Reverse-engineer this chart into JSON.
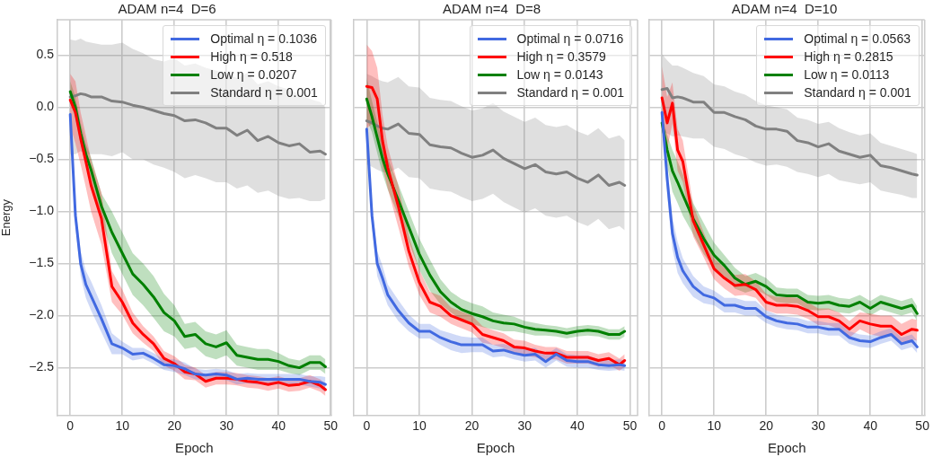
{
  "chart_data": [
    {
      "type": "line",
      "title": "ADAM n=4  D=6",
      "xlabel": "Epoch",
      "ylabel": "Energy",
      "x": [
        0,
        1,
        2,
        3,
        4,
        6,
        8,
        10,
        12,
        14,
        16,
        18,
        20,
        22,
        24,
        26,
        28,
        30,
        32,
        34,
        36,
        38,
        40,
        42,
        44,
        46,
        48,
        49
      ],
      "xlim": [
        -2.45,
        50.1
      ],
      "ylim": [
        -2.96,
        0.84
      ],
      "xticks": [
        0,
        10,
        20,
        30,
        40,
        50
      ],
      "yticks": [
        {
          "value": -2.5,
          "label": "−2.5"
        },
        {
          "value": -2.0,
          "label": "−2.0"
        },
        {
          "value": -1.5,
          "label": "−1.5"
        },
        {
          "value": -1.0,
          "label": "−1.0"
        },
        {
          "value": -0.5,
          "label": "−0.5"
        },
        {
          "value": 0.0,
          "label": "0.0"
        },
        {
          "value": 0.5,
          "label": "0.5"
        }
      ],
      "grid": true,
      "legend": "top right",
      "series": [
        {
          "name": "Optimal η = 0.1036",
          "color": "#4169e1",
          "values": [
            -0.07,
            -1.04,
            -1.5,
            -1.7,
            -1.81,
            -2.03,
            -2.27,
            -2.31,
            -2.37,
            -2.36,
            -2.41,
            -2.47,
            -2.48,
            -2.51,
            -2.56,
            -2.57,
            -2.56,
            -2.57,
            -2.61,
            -2.6,
            -2.61,
            -2.61,
            -2.61,
            -2.61,
            -2.61,
            -2.63,
            -2.64,
            -2.66
          ],
          "lower": [
            -0.12,
            -1.14,
            -1.62,
            -1.83,
            -1.95,
            -2.16,
            -2.37,
            -2.37,
            -2.43,
            -2.41,
            -2.46,
            -2.52,
            -2.54,
            -2.57,
            -2.61,
            -2.62,
            -2.61,
            -2.62,
            -2.66,
            -2.65,
            -2.66,
            -2.66,
            -2.66,
            -2.66,
            -2.66,
            -2.68,
            -2.7,
            -2.73
          ],
          "upper": [
            -0.02,
            -0.94,
            -1.38,
            -1.57,
            -1.67,
            -1.9,
            -2.17,
            -2.25,
            -2.31,
            -2.31,
            -2.36,
            -2.42,
            -2.42,
            -2.45,
            -2.51,
            -2.52,
            -2.51,
            -2.52,
            -2.56,
            -2.55,
            -2.56,
            -2.56,
            -2.56,
            -2.56,
            -2.56,
            -2.58,
            -2.58,
            -2.59
          ]
        },
        {
          "name": "High η = 0.518",
          "color": "#ff0000",
          "values": [
            0.07,
            -0.05,
            -0.3,
            -0.52,
            -0.75,
            -1.07,
            -1.72,
            -1.87,
            -2.07,
            -2.18,
            -2.27,
            -2.41,
            -2.46,
            -2.54,
            -2.56,
            -2.63,
            -2.6,
            -2.6,
            -2.61,
            -2.63,
            -2.64,
            -2.66,
            -2.64,
            -2.67,
            -2.66,
            -2.63,
            -2.67,
            -2.71
          ],
          "lower": [
            -0.18,
            -0.35,
            -0.55,
            -0.77,
            -1.0,
            -1.32,
            -1.87,
            -1.99,
            -2.17,
            -2.26,
            -2.34,
            -2.48,
            -2.53,
            -2.61,
            -2.62,
            -2.69,
            -2.66,
            -2.66,
            -2.67,
            -2.69,
            -2.7,
            -2.72,
            -2.7,
            -2.73,
            -2.72,
            -2.69,
            -2.73,
            -2.77
          ],
          "upper": [
            0.32,
            0.25,
            -0.05,
            -0.27,
            -0.5,
            -0.82,
            -1.57,
            -1.75,
            -1.97,
            -2.1,
            -2.2,
            -2.34,
            -2.39,
            -2.47,
            -2.5,
            -2.57,
            -2.54,
            -2.54,
            -2.55,
            -2.57,
            -2.58,
            -2.6,
            -2.58,
            -2.61,
            -2.6,
            -2.57,
            -2.61,
            -2.65
          ]
        },
        {
          "name": "Low η = 0.0207",
          "color": "#008000",
          "values": [
            0.15,
            0.0,
            -0.25,
            -0.45,
            -0.6,
            -0.95,
            -1.2,
            -1.4,
            -1.6,
            -1.7,
            -1.82,
            -1.97,
            -2.05,
            -2.2,
            -2.18,
            -2.27,
            -2.3,
            -2.26,
            -2.38,
            -2.4,
            -2.42,
            -2.42,
            -2.44,
            -2.48,
            -2.5,
            -2.45,
            -2.45,
            -2.49
          ],
          "lower": [
            0.05,
            -0.1,
            -0.35,
            -0.55,
            -0.72,
            -1.07,
            -1.4,
            -1.6,
            -1.8,
            -1.9,
            -2.02,
            -2.15,
            -2.2,
            -2.32,
            -2.3,
            -2.39,
            -2.42,
            -2.38,
            -2.48,
            -2.5,
            -2.52,
            -2.52,
            -2.52,
            -2.55,
            -2.57,
            -2.52,
            -2.52,
            -2.56
          ],
          "upper": [
            0.25,
            0.1,
            -0.15,
            -0.35,
            -0.48,
            -0.83,
            -1.0,
            -1.2,
            -1.4,
            -1.5,
            -1.62,
            -1.79,
            -1.9,
            -2.08,
            -2.06,
            -2.15,
            -2.18,
            -2.14,
            -2.28,
            -2.3,
            -2.32,
            -2.32,
            -2.36,
            -2.41,
            -2.43,
            -2.38,
            -2.38,
            -2.42
          ]
        },
        {
          "name": "Standard η = 0.001",
          "color": "#808080",
          "values": [
            0.1,
            0.11,
            0.13,
            0.12,
            0.1,
            0.1,
            0.06,
            0.05,
            0.02,
            0.0,
            -0.03,
            -0.06,
            -0.08,
            -0.13,
            -0.12,
            -0.15,
            -0.2,
            -0.2,
            -0.27,
            -0.22,
            -0.32,
            -0.28,
            -0.34,
            -0.37,
            -0.35,
            -0.43,
            -0.42,
            -0.45
          ],
          "lower": [
            -0.45,
            -0.45,
            -0.42,
            -0.45,
            -0.45,
            -0.45,
            -0.47,
            -0.43,
            -0.5,
            -0.5,
            -0.55,
            -0.58,
            -0.62,
            -0.68,
            -0.65,
            -0.68,
            -0.72,
            -0.72,
            -0.78,
            -0.75,
            -0.82,
            -0.8,
            -0.85,
            -0.88,
            -0.87,
            -0.9,
            -0.9,
            -0.88
          ],
          "upper": [
            0.65,
            0.64,
            0.66,
            0.63,
            0.62,
            0.6,
            0.6,
            0.62,
            0.56,
            0.52,
            0.46,
            0.44,
            0.47,
            0.4,
            0.42,
            0.38,
            0.35,
            0.32,
            0.28,
            0.33,
            0.22,
            0.25,
            0.2,
            0.17,
            0.12,
            0.08,
            0.05,
            0.0
          ]
        }
      ]
    },
    {
      "type": "line",
      "title": "ADAM n=4  D=8",
      "xlabel": "Epoch",
      "x": [
        0,
        1,
        2,
        3,
        4,
        6,
        8,
        10,
        12,
        14,
        16,
        18,
        20,
        22,
        24,
        26,
        28,
        30,
        32,
        34,
        36,
        38,
        40,
        42,
        44,
        46,
        48,
        49
      ],
      "xlim": [
        -2.45,
        51.45
      ],
      "ylim": [
        -2.96,
        0.84
      ],
      "xticks": [
        0,
        10,
        20,
        30,
        40,
        50
      ],
      "yticks": [
        -2.5,
        -2.0,
        -1.5,
        -1.0,
        -0.5,
        0.0,
        0.5
      ],
      "tick_labels": "x",
      "grid": true,
      "legend": "top right",
      "series": [
        {
          "name": "Optimal η = 0.0716",
          "color": "#4169e1",
          "values": [
            -0.21,
            -1.04,
            -1.5,
            -1.64,
            -1.8,
            -1.95,
            -2.07,
            -2.15,
            -2.15,
            -2.21,
            -2.25,
            -2.28,
            -2.28,
            -2.28,
            -2.34,
            -2.33,
            -2.36,
            -2.38,
            -2.37,
            -2.44,
            -2.37,
            -2.43,
            -2.44,
            -2.44,
            -2.47,
            -2.48,
            -2.47,
            -2.48
          ],
          "lower": [
            -0.26,
            -1.14,
            -1.62,
            -1.76,
            -1.9,
            -2.05,
            -2.15,
            -2.22,
            -2.22,
            -2.28,
            -2.33,
            -2.36,
            -2.35,
            -2.35,
            -2.4,
            -2.39,
            -2.42,
            -2.44,
            -2.43,
            -2.5,
            -2.43,
            -2.49,
            -2.5,
            -2.5,
            -2.52,
            -2.53,
            -2.52,
            -2.53
          ],
          "upper": [
            -0.16,
            -0.94,
            -1.38,
            -1.52,
            -1.7,
            -1.85,
            -1.99,
            -2.08,
            -2.08,
            -2.14,
            -2.17,
            -2.2,
            -2.21,
            -2.21,
            -2.28,
            -2.27,
            -2.3,
            -2.32,
            -2.31,
            -2.38,
            -2.31,
            -2.37,
            -2.38,
            -2.38,
            -2.42,
            -2.43,
            -2.42,
            -2.43
          ]
        },
        {
          "name": "High η = 0.3579",
          "color": "#ff0000",
          "values": [
            0.2,
            0.19,
            0.08,
            -0.32,
            -0.58,
            -0.95,
            -1.38,
            -1.68,
            -1.87,
            -1.91,
            -2.0,
            -2.04,
            -2.08,
            -2.18,
            -2.21,
            -2.24,
            -2.3,
            -2.31,
            -2.34,
            -2.36,
            -2.36,
            -2.4,
            -2.4,
            -2.4,
            -2.43,
            -2.41,
            -2.47,
            -2.43
          ],
          "lower": [
            -0.2,
            -0.16,
            -0.22,
            -0.57,
            -0.78,
            -1.15,
            -1.53,
            -1.8,
            -1.97,
            -2.01,
            -2.08,
            -2.12,
            -2.16,
            -2.26,
            -2.28,
            -2.31,
            -2.37,
            -2.38,
            -2.4,
            -2.42,
            -2.42,
            -2.46,
            -2.46,
            -2.46,
            -2.49,
            -2.47,
            -2.53,
            -2.49
          ],
          "upper": [
            0.6,
            0.54,
            0.38,
            -0.07,
            -0.38,
            -0.75,
            -1.23,
            -1.56,
            -1.77,
            -1.81,
            -1.92,
            -1.96,
            -2.0,
            -2.1,
            -2.14,
            -2.17,
            -2.23,
            -2.24,
            -2.28,
            -2.3,
            -2.3,
            -2.34,
            -2.34,
            -2.34,
            -2.37,
            -2.35,
            -2.41,
            -2.37
          ]
        },
        {
          "name": "Low η = 0.0143",
          "color": "#008000",
          "values": [
            0.08,
            -0.09,
            -0.29,
            -0.49,
            -0.64,
            -0.89,
            -1.15,
            -1.41,
            -1.61,
            -1.77,
            -1.87,
            -1.94,
            -1.98,
            -2.01,
            -2.05,
            -2.07,
            -2.08,
            -2.11,
            -2.13,
            -2.14,
            -2.15,
            -2.17,
            -2.15,
            -2.14,
            -2.15,
            -2.18,
            -2.18,
            -2.15
          ],
          "lower": [
            -0.12,
            -0.24,
            -0.44,
            -0.64,
            -0.79,
            -1.04,
            -1.3,
            -1.56,
            -1.76,
            -1.89,
            -1.97,
            -2.04,
            -2.08,
            -2.11,
            -2.13,
            -2.15,
            -2.15,
            -2.17,
            -2.19,
            -2.19,
            -2.2,
            -2.22,
            -2.2,
            -2.19,
            -2.2,
            -2.23,
            -2.23,
            -2.2
          ],
          "upper": [
            0.28,
            0.06,
            -0.14,
            -0.34,
            -0.49,
            -0.74,
            -1.0,
            -1.26,
            -1.46,
            -1.65,
            -1.77,
            -1.84,
            -1.88,
            -1.91,
            -1.97,
            -1.99,
            -2.01,
            -2.05,
            -2.07,
            -2.09,
            -2.1,
            -2.12,
            -2.1,
            -2.09,
            -2.1,
            -2.13,
            -2.13,
            -2.1
          ]
        },
        {
          "name": "Standard η = 0.001",
          "color": "#808080",
          "values": [
            -0.13,
            -0.15,
            -0.18,
            -0.2,
            -0.21,
            -0.16,
            -0.25,
            -0.26,
            -0.36,
            -0.38,
            -0.39,
            -0.44,
            -0.48,
            -0.46,
            -0.41,
            -0.49,
            -0.54,
            -0.59,
            -0.55,
            -0.62,
            -0.64,
            -0.62,
            -0.68,
            -0.72,
            -0.65,
            -0.75,
            -0.72,
            -0.75
          ],
          "lower": [
            -0.55,
            -0.57,
            -0.6,
            -0.62,
            -0.63,
            -0.58,
            -0.67,
            -0.68,
            -0.78,
            -0.8,
            -0.81,
            -0.86,
            -0.9,
            -0.88,
            -0.83,
            -0.91,
            -0.96,
            -1.01,
            -0.97,
            -1.04,
            -1.06,
            -1.04,
            -1.1,
            -1.14,
            -1.07,
            -1.17,
            -1.14,
            -1.18
          ],
          "upper": [
            0.32,
            0.3,
            0.27,
            0.25,
            0.24,
            0.29,
            0.2,
            0.19,
            0.09,
            0.07,
            0.06,
            0.01,
            -0.03,
            -0.01,
            0.04,
            -0.04,
            -0.09,
            -0.14,
            -0.1,
            -0.17,
            -0.19,
            -0.17,
            -0.23,
            -0.27,
            -0.2,
            -0.3,
            -0.27,
            -0.32
          ]
        }
      ]
    },
    {
      "type": "line",
      "title": "ADAM n=4  D=10",
      "xlabel": "Epoch",
      "x": [
        0,
        1,
        2,
        3,
        4,
        6,
        8,
        10,
        12,
        14,
        16,
        18,
        20,
        22,
        24,
        26,
        28,
        30,
        32,
        34,
        36,
        38,
        40,
        42,
        44,
        46,
        48,
        49
      ],
      "xlim": [
        -2.45,
        50.45
      ],
      "ylim": [
        -2.96,
        0.84
      ],
      "xticks": [
        0,
        10,
        20,
        30,
        40,
        50
      ],
      "yticks": [
        -2.5,
        -2.0,
        -1.5,
        -1.0,
        -0.5,
        0.0,
        0.5
      ],
      "tick_labels": "x",
      "grid": true,
      "legend": "top right",
      "series": [
        {
          "name": "Optimal η = 0.0563",
          "color": "#4169e1",
          "values": [
            -0.05,
            -0.69,
            -1.21,
            -1.44,
            -1.57,
            -1.72,
            -1.8,
            -1.83,
            -1.9,
            -1.9,
            -1.93,
            -1.93,
            -2.01,
            -2.05,
            -2.07,
            -2.08,
            -2.11,
            -2.11,
            -2.13,
            -2.13,
            -2.21,
            -2.24,
            -2.25,
            -2.21,
            -2.18,
            -2.27,
            -2.24,
            -2.3
          ],
          "lower": [
            -0.1,
            -0.84,
            -1.36,
            -1.59,
            -1.69,
            -1.82,
            -1.88,
            -1.9,
            -1.97,
            -1.97,
            -2.0,
            -2.0,
            -2.07,
            -2.11,
            -2.13,
            -2.14,
            -2.17,
            -2.17,
            -2.19,
            -2.19,
            -2.27,
            -2.3,
            -2.31,
            -2.27,
            -2.24,
            -2.33,
            -2.3,
            -2.36
          ],
          "upper": [
            0.0,
            -0.54,
            -1.06,
            -1.29,
            -1.45,
            -1.62,
            -1.72,
            -1.76,
            -1.83,
            -1.83,
            -1.86,
            -1.86,
            -1.95,
            -1.99,
            -2.01,
            -2.02,
            -2.05,
            -2.05,
            -2.07,
            -2.07,
            -2.15,
            -2.18,
            -2.19,
            -2.15,
            -2.12,
            -2.21,
            -2.18,
            -2.24
          ]
        },
        {
          "name": "High η = 0.2815",
          "color": "#ff0000",
          "values": [
            0.09,
            -0.15,
            0.04,
            -0.41,
            -0.52,
            -1.09,
            -1.32,
            -1.55,
            -1.64,
            -1.71,
            -1.7,
            -1.75,
            -1.87,
            -1.9,
            -1.9,
            -1.91,
            -1.95,
            -2.01,
            -2.01,
            -2.05,
            -2.13,
            -2.05,
            -2.08,
            -2.1,
            -2.1,
            -2.18,
            -2.13,
            -2.14
          ],
          "lower": [
            -0.21,
            -0.4,
            -0.16,
            -0.61,
            -0.72,
            -1.24,
            -1.44,
            -1.65,
            -1.74,
            -1.81,
            -1.8,
            -1.83,
            -1.95,
            -1.98,
            -1.98,
            -1.99,
            -2.03,
            -2.09,
            -2.09,
            -2.13,
            -2.21,
            -2.13,
            -2.18,
            -2.2,
            -2.2,
            -2.28,
            -2.23,
            -2.24
          ],
          "upper": [
            0.39,
            0.1,
            0.24,
            -0.21,
            -0.32,
            -0.94,
            -1.2,
            -1.45,
            -1.54,
            -1.61,
            -1.6,
            -1.67,
            -1.79,
            -1.82,
            -1.82,
            -1.83,
            -1.87,
            -1.93,
            -1.93,
            -1.97,
            -2.05,
            -1.97,
            -1.98,
            -2.0,
            -2.0,
            -2.08,
            -2.03,
            -2.04
          ]
        },
        {
          "name": "Low η = 0.0113",
          "color": "#008000",
          "values": [
            -0.15,
            -0.41,
            -0.61,
            -0.72,
            -0.84,
            -1.07,
            -1.26,
            -1.42,
            -1.52,
            -1.64,
            -1.7,
            -1.67,
            -1.72,
            -1.8,
            -1.81,
            -1.81,
            -1.87,
            -1.88,
            -1.87,
            -1.9,
            -1.91,
            -1.87,
            -1.93,
            -1.87,
            -1.9,
            -1.93,
            -1.9,
            -1.98
          ],
          "lower": [
            -0.2,
            -0.56,
            -0.81,
            -0.92,
            -1.04,
            -1.22,
            -1.41,
            -1.54,
            -1.62,
            -1.74,
            -1.78,
            -1.75,
            -1.8,
            -1.87,
            -1.88,
            -1.88,
            -1.94,
            -1.95,
            -1.94,
            -1.97,
            -1.98,
            -1.94,
            -2.0,
            -1.94,
            -1.97,
            -2.0,
            -1.97,
            -2.05
          ],
          "upper": [
            -0.1,
            -0.26,
            -0.41,
            -0.52,
            -0.64,
            -0.92,
            -1.11,
            -1.3,
            -1.42,
            -1.54,
            -1.62,
            -1.59,
            -1.64,
            -1.73,
            -1.74,
            -1.74,
            -1.8,
            -1.81,
            -1.8,
            -1.83,
            -1.84,
            -1.8,
            -1.86,
            -1.8,
            -1.83,
            -1.86,
            -1.83,
            -1.91
          ]
        },
        {
          "name": "Standard η = 0.001",
          "color": "#808080",
          "values": [
            0.17,
            0.18,
            0.09,
            0.1,
            0.09,
            0.05,
            0.05,
            -0.05,
            -0.05,
            -0.09,
            -0.12,
            -0.18,
            -0.21,
            -0.21,
            -0.23,
            -0.32,
            -0.34,
            -0.38,
            -0.35,
            -0.42,
            -0.45,
            -0.48,
            -0.46,
            -0.56,
            -0.58,
            -0.61,
            -0.64,
            -0.65
          ],
          "lower": [
            -0.25,
            -0.25,
            -0.28,
            -0.27,
            -0.28,
            -0.3,
            -0.3,
            -0.38,
            -0.4,
            -0.45,
            -0.48,
            -0.53,
            -0.56,
            -0.55,
            -0.57,
            -0.62,
            -0.64,
            -0.67,
            -0.64,
            -0.7,
            -0.72,
            -0.74,
            -0.72,
            -0.8,
            -0.82,
            -0.84,
            -0.87,
            -0.87
          ],
          "upper": [
            0.51,
            0.45,
            0.4,
            0.4,
            0.38,
            0.33,
            0.3,
            0.22,
            0.2,
            0.15,
            0.12,
            0.06,
            0.02,
            0.0,
            -0.02,
            -0.1,
            -0.12,
            -0.16,
            -0.14,
            -0.2,
            -0.24,
            -0.27,
            -0.25,
            -0.34,
            -0.37,
            -0.4,
            -0.43,
            -0.45
          ]
        }
      ]
    }
  ]
}
